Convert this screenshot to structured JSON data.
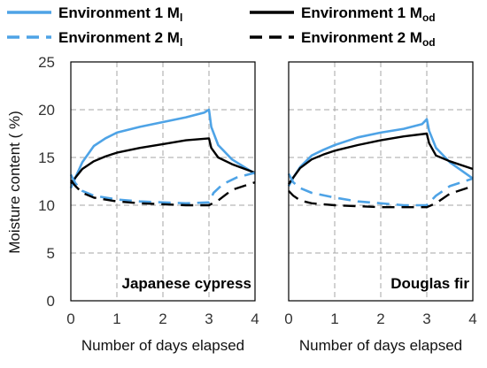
{
  "legend": [
    {
      "label": "Environment 1 M",
      "sub": "l",
      "color": "#4ea3e6",
      "dash": "solid"
    },
    {
      "label": "Environment 1 M",
      "sub": "od",
      "color": "#000000",
      "dash": "solid"
    },
    {
      "label": "Environment 2 M",
      "sub": "l",
      "color": "#4ea3e6",
      "dash": "dashed"
    },
    {
      "label": "Environment 2 M",
      "sub": "od",
      "color": "#000000",
      "dash": "dashed"
    }
  ],
  "ylabel": "Moisture content ( %)",
  "xlabel": "Number of days elapsed",
  "chart_data": [
    {
      "type": "line",
      "panel_label": "Japanese cypress",
      "xlim": [
        0,
        4
      ],
      "ylim": [
        0,
        25
      ],
      "xticks": [
        0,
        1,
        2,
        3,
        4
      ],
      "yticks": [
        0,
        5,
        10,
        15,
        20,
        25
      ],
      "grid": true,
      "series": [
        {
          "name": "Environment 1 Ml",
          "color": "#4ea3e6",
          "dash": "solid",
          "x": [
            0,
            0.1,
            0.25,
            0.5,
            0.75,
            1,
            1.5,
            2,
            2.5,
            2.9,
            3.0,
            3.05,
            3.2,
            3.5,
            4
          ],
          "y": [
            11.8,
            12.9,
            14.5,
            16.2,
            17.0,
            17.6,
            18.2,
            18.7,
            19.2,
            19.7,
            20.0,
            18.2,
            16.3,
            14.8,
            13.3
          ]
        },
        {
          "name": "Environment 1 Mod",
          "color": "#000000",
          "dash": "solid",
          "x": [
            0,
            0.1,
            0.25,
            0.5,
            0.75,
            1,
            1.5,
            2,
            2.5,
            3.0,
            3.05,
            3.2,
            3.5,
            4
          ],
          "y": [
            12.3,
            12.9,
            13.8,
            14.6,
            15.1,
            15.5,
            16.0,
            16.4,
            16.8,
            17.0,
            16.0,
            15.0,
            14.3,
            13.4
          ]
        },
        {
          "name": "Environment 2 Ml",
          "color": "#4ea3e6",
          "dash": "dashed",
          "x": [
            0,
            0.1,
            0.25,
            0.5,
            1,
            1.5,
            2,
            2.5,
            3.0,
            3.1,
            3.3,
            3.6,
            4
          ],
          "y": [
            13.2,
            12.3,
            11.5,
            11.0,
            10.6,
            10.4,
            10.3,
            10.2,
            10.3,
            11.3,
            12.2,
            12.9,
            13.4
          ]
        },
        {
          "name": "Environment 2 Mod",
          "color": "#000000",
          "dash": "dashed",
          "x": [
            0,
            0.1,
            0.25,
            0.5,
            1,
            1.5,
            2,
            2.5,
            3.0,
            3.2,
            3.5,
            4
          ],
          "y": [
            12.6,
            12.0,
            11.3,
            10.8,
            10.4,
            10.2,
            10.1,
            10.0,
            10.0,
            10.5,
            11.6,
            12.4
          ]
        }
      ]
    },
    {
      "type": "line",
      "panel_label": "Douglas fir",
      "xlim": [
        0,
        4
      ],
      "ylim": [
        0,
        25
      ],
      "xticks": [
        0,
        1,
        2,
        3,
        4
      ],
      "yticks": [
        0,
        5,
        10,
        15,
        20,
        25
      ],
      "grid": true,
      "series": [
        {
          "name": "Environment 1 Ml",
          "color": "#4ea3e6",
          "dash": "solid",
          "x": [
            0,
            0.1,
            0.25,
            0.5,
            0.75,
            1,
            1.5,
            2,
            2.5,
            2.9,
            3.0,
            3.05,
            3.2,
            3.5,
            4
          ],
          "y": [
            12.0,
            12.9,
            14.0,
            15.2,
            15.8,
            16.3,
            17.1,
            17.6,
            18.0,
            18.5,
            19.0,
            17.8,
            16.0,
            14.5,
            12.8
          ]
        },
        {
          "name": "Environment 1 Mod",
          "color": "#000000",
          "dash": "solid",
          "x": [
            0,
            0.1,
            0.25,
            0.5,
            0.75,
            1,
            1.5,
            2,
            2.5,
            3.0,
            3.05,
            3.2,
            3.5,
            4
          ],
          "y": [
            12.2,
            12.9,
            13.9,
            14.8,
            15.3,
            15.7,
            16.3,
            16.8,
            17.2,
            17.5,
            16.5,
            15.2,
            14.6,
            13.8
          ]
        },
        {
          "name": "Environment 2 Ml",
          "color": "#4ea3e6",
          "dash": "dashed",
          "x": [
            0,
            0.1,
            0.25,
            0.5,
            1,
            1.5,
            2,
            2.5,
            3.0,
            3.2,
            3.5,
            4
          ],
          "y": [
            13.3,
            12.4,
            11.8,
            11.3,
            10.8,
            10.4,
            10.2,
            10.0,
            10.0,
            11.0,
            12.0,
            12.8
          ]
        },
        {
          "name": "Environment 2 Mod",
          "color": "#000000",
          "dash": "dashed",
          "x": [
            0,
            0.1,
            0.25,
            0.5,
            1,
            1.5,
            2,
            2.5,
            3.0,
            3.2,
            3.5,
            4
          ],
          "y": [
            11.5,
            11.0,
            10.5,
            10.2,
            10.0,
            9.9,
            9.8,
            9.8,
            9.8,
            10.2,
            11.2,
            12.0
          ]
        }
      ]
    }
  ]
}
